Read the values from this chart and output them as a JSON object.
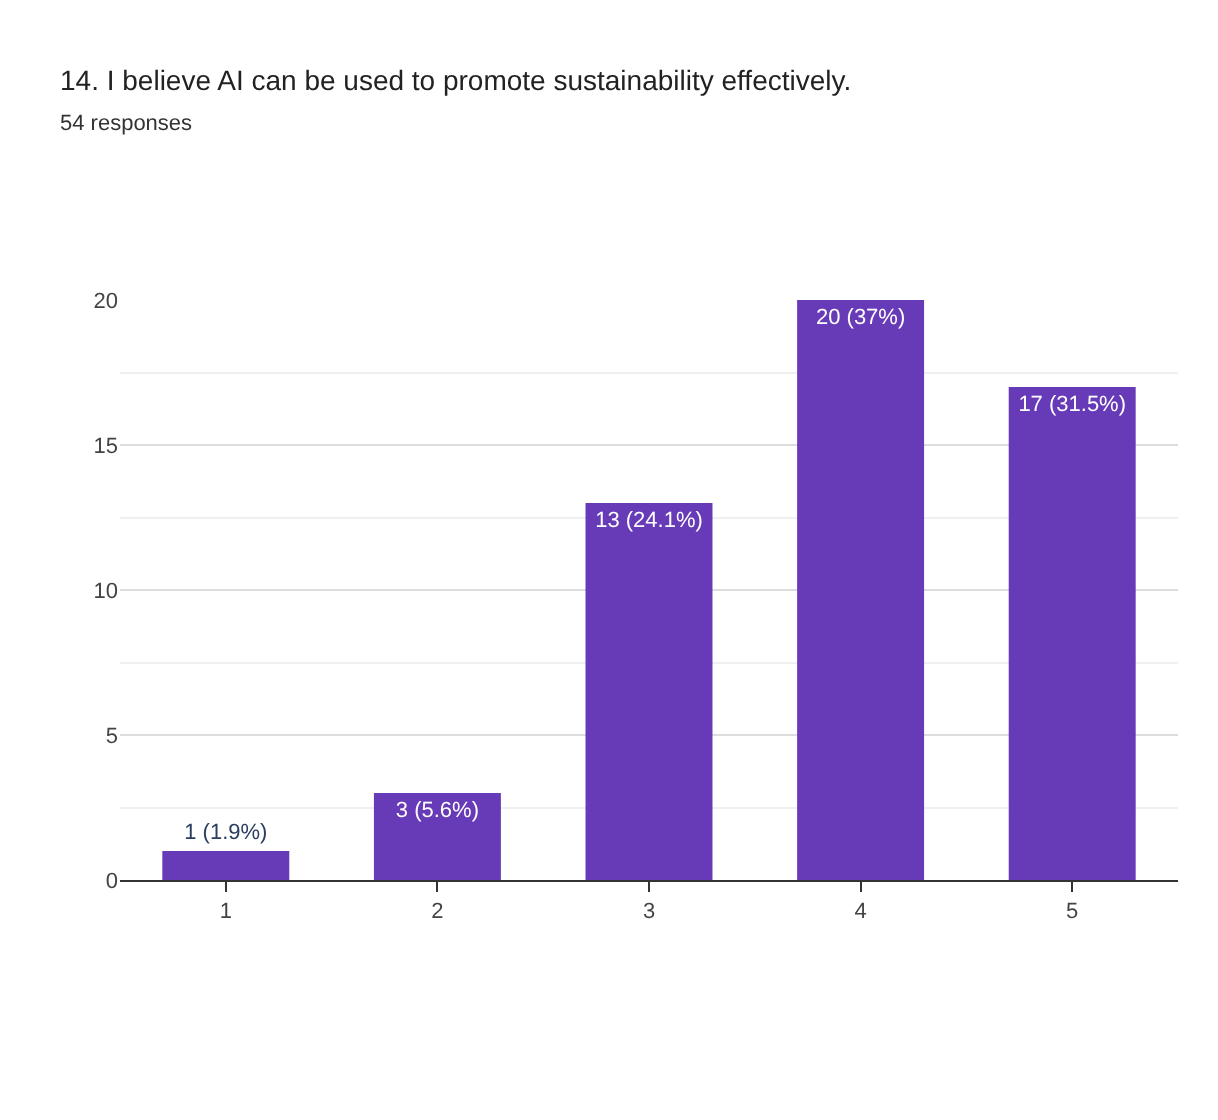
{
  "chart_data": {
    "type": "bar",
    "title": "14. I believe AI can be used to promote sustainability effectively.",
    "subtitle": "54 responses",
    "categories": [
      "1",
      "2",
      "3",
      "4",
      "5"
    ],
    "values": [
      1,
      3,
      13,
      20,
      17
    ],
    "value_labels": [
      "1 (1.9%)",
      "3 (5.6%)",
      "13 (24.1%)",
      "20 (37%)",
      "17 (31.5%)"
    ],
    "color": "#673ab7",
    "ylim": [
      0,
      20
    ],
    "yticks": [
      0,
      5,
      10,
      15,
      20
    ],
    "grid": "y",
    "legend": false
  }
}
